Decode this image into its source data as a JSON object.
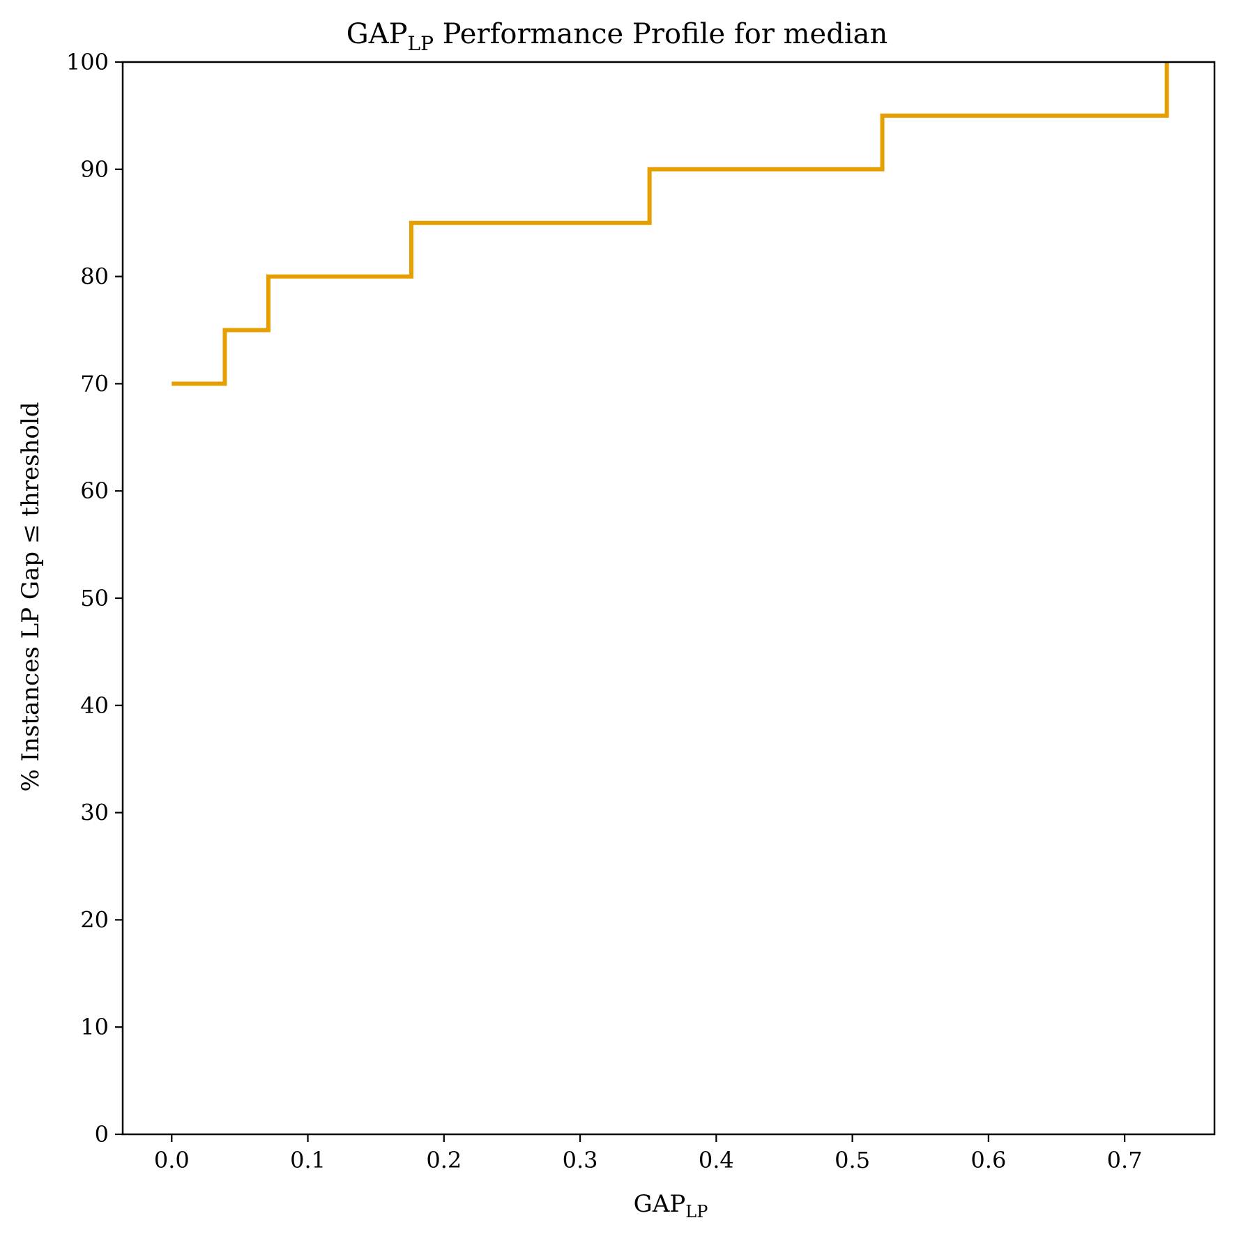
{
  "chart_data": {
    "type": "line",
    "step": "post",
    "title": {
      "main": "GAP",
      "sub": "LP",
      "rest": " Performance Profile for median"
    },
    "xlabel": {
      "main": "GAP",
      "sub": "LP"
    },
    "ylabel": "% Instances LP Gap ≤ threshold",
    "xlim": [
      -0.036,
      0.766
    ],
    "ylim": [
      0,
      100
    ],
    "xticks": [
      0.0,
      0.1,
      0.2,
      0.3,
      0.4,
      0.5,
      0.6,
      0.7
    ],
    "xtick_labels": [
      "0.0",
      "0.1",
      "0.2",
      "0.3",
      "0.4",
      "0.5",
      "0.6",
      "0.7"
    ],
    "yticks": [
      0,
      10,
      20,
      30,
      40,
      50,
      60,
      70,
      80,
      90,
      100
    ],
    "ytick_labels": [
      "0",
      "10",
      "20",
      "30",
      "40",
      "50",
      "60",
      "70",
      "80",
      "90",
      "100"
    ],
    "grid": false,
    "legend": "none",
    "series": [
      {
        "color": "#e69f00",
        "x": [
          0.0,
          0.039,
          0.071,
          0.176,
          0.351,
          0.522,
          0.731
        ],
        "y": [
          70,
          75,
          80,
          85,
          90,
          95,
          100
        ]
      }
    ]
  }
}
